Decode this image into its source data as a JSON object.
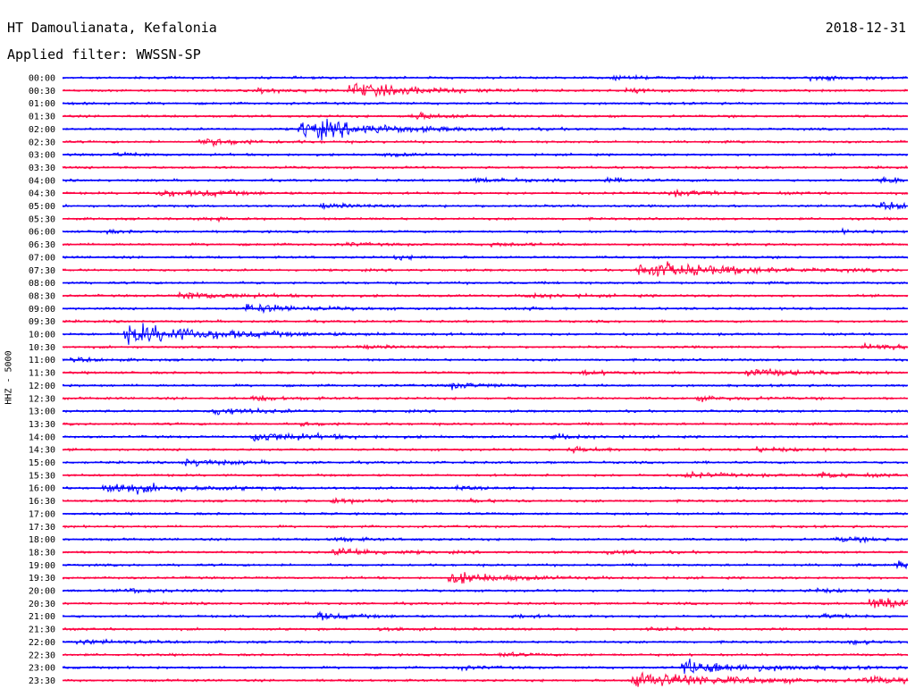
{
  "header": {
    "station": "HT Damoulianata, Kefalonia",
    "date": "2018-12-31",
    "filter": "Applied filter: WWSSN-SP"
  },
  "chart_data": {
    "type": "line",
    "title": "HT Damoulianata, Kefalonia",
    "ylabel": "HHZ - 5000",
    "row_labels": [
      "00:00",
      "00:30",
      "01:00",
      "01:30",
      "02:00",
      "02:30",
      "03:00",
      "03:30",
      "04:00",
      "04:30",
      "05:00",
      "05:30",
      "06:00",
      "06:30",
      "07:00",
      "07:30",
      "08:00",
      "08:30",
      "09:00",
      "09:30",
      "10:00",
      "10:30",
      "11:00",
      "11:30",
      "12:00",
      "12:30",
      "13:00",
      "13:30",
      "14:00",
      "14:30",
      "15:00",
      "15:30",
      "16:00",
      "16:30",
      "17:00",
      "17:30",
      "18:00",
      "18:30",
      "19:00",
      "19:30",
      "20:00",
      "20:30",
      "21:00",
      "21:30",
      "22:00",
      "22:30",
      "23:00",
      "23:30"
    ],
    "row_minutes": 30,
    "colors": {
      "even_rows": "#0000ff",
      "odd_rows": "#ff0040",
      "text": "#000000",
      "background": "#ffffff"
    },
    "events": [
      {
        "row": 0,
        "minute": 19.5,
        "amp": 1.0,
        "dur": 1.2
      },
      {
        "row": 0,
        "minute": 26.5,
        "amp": 1.4,
        "dur": 1.5
      },
      {
        "row": 1,
        "minute": 7.0,
        "amp": 1.6,
        "dur": 1.2
      },
      {
        "row": 1,
        "minute": 10.2,
        "amp": 5.0,
        "dur": 2.0
      },
      {
        "row": 1,
        "minute": 20.0,
        "amp": 1.0,
        "dur": 1.5
      },
      {
        "row": 3,
        "minute": 12.4,
        "amp": 2.0,
        "dur": 1.5
      },
      {
        "row": 4,
        "minute": 8.5,
        "amp": 7.0,
        "dur": 2.5
      },
      {
        "row": 5,
        "minute": 5.0,
        "amp": 2.5,
        "dur": 1.5
      },
      {
        "row": 6,
        "minute": 1.9,
        "amp": 1.2,
        "dur": 1.0
      },
      {
        "row": 6,
        "minute": 11.5,
        "amp": 1.0,
        "dur": 1.0
      },
      {
        "row": 8,
        "minute": 14.5,
        "amp": 1.6,
        "dur": 1.5
      },
      {
        "row": 8,
        "minute": 19.0,
        "amp": 1.4,
        "dur": 1.2
      },
      {
        "row": 8,
        "minute": 29.0,
        "amp": 1.8,
        "dur": 1.8
      },
      {
        "row": 9,
        "minute": 3.4,
        "amp": 2.2,
        "dur": 1.5
      },
      {
        "row": 9,
        "minute": 5.0,
        "amp": 1.2,
        "dur": 1.2
      },
      {
        "row": 9,
        "minute": 21.5,
        "amp": 1.5,
        "dur": 2.0
      },
      {
        "row": 10,
        "minute": 9.2,
        "amp": 1.3,
        "dur": 1.2
      },
      {
        "row": 10,
        "minute": 29.0,
        "amp": 2.2,
        "dur": 2.0
      },
      {
        "row": 11,
        "minute": 5.0,
        "amp": 1.0,
        "dur": 1.0
      },
      {
        "row": 12,
        "minute": 1.3,
        "amp": 1.0,
        "dur": 1.0
      },
      {
        "row": 12,
        "minute": 27.5,
        "amp": 1.0,
        "dur": 1.0
      },
      {
        "row": 13,
        "minute": 10.0,
        "amp": 1.0,
        "dur": 1.0
      },
      {
        "row": 13,
        "minute": 15.2,
        "amp": 1.2,
        "dur": 1.2
      },
      {
        "row": 14,
        "minute": 11.8,
        "amp": 1.1,
        "dur": 1.0
      },
      {
        "row": 15,
        "minute": 20.5,
        "amp": 6.0,
        "dur": 3.0
      },
      {
        "row": 17,
        "minute": 4.2,
        "amp": 2.5,
        "dur": 2.0
      },
      {
        "row": 17,
        "minute": 16.5,
        "amp": 1.2,
        "dur": 2.0
      },
      {
        "row": 18,
        "minute": 6.5,
        "amp": 3.0,
        "dur": 1.8
      },
      {
        "row": 18,
        "minute": 16.0,
        "amp": 1.0,
        "dur": 1.0
      },
      {
        "row": 20,
        "minute": 2.3,
        "amp": 7.0,
        "dur": 3.0
      },
      {
        "row": 21,
        "minute": 28.5,
        "amp": 1.8,
        "dur": 1.5
      },
      {
        "row": 21,
        "minute": 10.5,
        "amp": 1.0,
        "dur": 1.0
      },
      {
        "row": 22,
        "minute": 0.4,
        "amp": 1.2,
        "dur": 1.0
      },
      {
        "row": 23,
        "minute": 18.5,
        "amp": 1.3,
        "dur": 1.2
      },
      {
        "row": 23,
        "minute": 24.3,
        "amp": 3.0,
        "dur": 1.5
      },
      {
        "row": 24,
        "minute": 13.7,
        "amp": 2.0,
        "dur": 1.2
      },
      {
        "row": 25,
        "minute": 6.8,
        "amp": 1.5,
        "dur": 1.2
      },
      {
        "row": 25,
        "minute": 22.6,
        "amp": 1.5,
        "dur": 1.5
      },
      {
        "row": 26,
        "minute": 5.4,
        "amp": 2.5,
        "dur": 1.5
      },
      {
        "row": 27,
        "minute": 8.5,
        "amp": 1.0,
        "dur": 1.0
      },
      {
        "row": 28,
        "minute": 6.8,
        "amp": 3.5,
        "dur": 2.0
      },
      {
        "row": 28,
        "minute": 17.4,
        "amp": 1.5,
        "dur": 1.2
      },
      {
        "row": 29,
        "minute": 18.0,
        "amp": 1.8,
        "dur": 1.2
      },
      {
        "row": 29,
        "minute": 24.6,
        "amp": 1.4,
        "dur": 1.2
      },
      {
        "row": 30,
        "minute": 4.3,
        "amp": 2.5,
        "dur": 1.5
      },
      {
        "row": 31,
        "minute": 22.1,
        "amp": 1.8,
        "dur": 1.5
      },
      {
        "row": 31,
        "minute": 26.8,
        "amp": 1.8,
        "dur": 1.5
      },
      {
        "row": 32,
        "minute": 1.5,
        "amp": 4.0,
        "dur": 2.5
      },
      {
        "row": 32,
        "minute": 14.0,
        "amp": 1.0,
        "dur": 1.0
      },
      {
        "row": 33,
        "minute": 9.6,
        "amp": 1.5,
        "dur": 1.5
      },
      {
        "row": 33,
        "minute": 14.5,
        "amp": 1.0,
        "dur": 1.0
      },
      {
        "row": 36,
        "minute": 9.6,
        "amp": 1.5,
        "dur": 1.0
      },
      {
        "row": 36,
        "minute": 27.5,
        "amp": 1.5,
        "dur": 1.5
      },
      {
        "row": 37,
        "minute": 9.7,
        "amp": 3.0,
        "dur": 1.5
      },
      {
        "row": 37,
        "minute": 19.3,
        "amp": 1.2,
        "dur": 1.5
      },
      {
        "row": 38,
        "minute": 29.6,
        "amp": 2.5,
        "dur": 1.0
      },
      {
        "row": 39,
        "minute": 13.8,
        "amp": 4.0,
        "dur": 1.8
      },
      {
        "row": 40,
        "minute": 2.3,
        "amp": 1.5,
        "dur": 1.2
      },
      {
        "row": 40,
        "minute": 26.5,
        "amp": 1.2,
        "dur": 1.2
      },
      {
        "row": 41,
        "minute": 28.7,
        "amp": 4.5,
        "dur": 3.0
      },
      {
        "row": 42,
        "minute": 9.0,
        "amp": 2.5,
        "dur": 1.2
      },
      {
        "row": 42,
        "minute": 16.0,
        "amp": 1.0,
        "dur": 1.0
      },
      {
        "row": 42,
        "minute": 27.0,
        "amp": 1.2,
        "dur": 1.0
      },
      {
        "row": 43,
        "minute": 11.3,
        "amp": 1.0,
        "dur": 1.0
      },
      {
        "row": 43,
        "minute": 20.8,
        "amp": 1.0,
        "dur": 1.0
      },
      {
        "row": 44,
        "minute": 0.5,
        "amp": 1.5,
        "dur": 1.5
      },
      {
        "row": 44,
        "minute": 28.0,
        "amp": 1.4,
        "dur": 1.0
      },
      {
        "row": 45,
        "minute": 15.5,
        "amp": 1.2,
        "dur": 1.0
      },
      {
        "row": 46,
        "minute": 14.0,
        "amp": 1.2,
        "dur": 1.0
      },
      {
        "row": 46,
        "minute": 22.0,
        "amp": 5.0,
        "dur": 2.5
      },
      {
        "row": 47,
        "minute": 20.3,
        "amp": 6.0,
        "dur": 3.0
      },
      {
        "row": 47,
        "minute": 28.5,
        "amp": 2.5,
        "dur": 1.2
      }
    ]
  }
}
